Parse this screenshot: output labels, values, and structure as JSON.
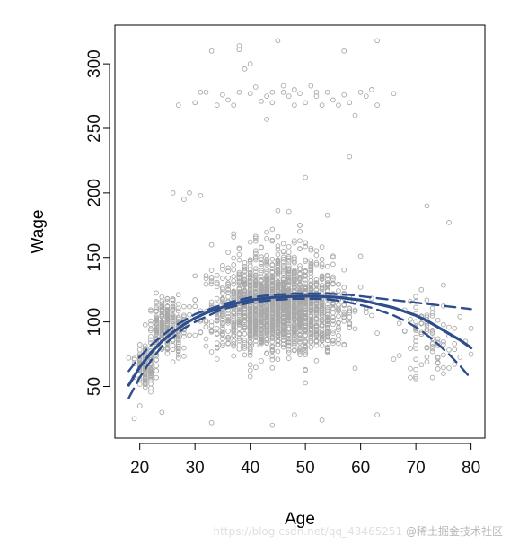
{
  "chart_data": {
    "type": "scatter",
    "title": "",
    "xlabel": "Age",
    "ylabel": "Wage",
    "xlim": [
      15.5,
      82.5
    ],
    "ylim": [
      10,
      330
    ],
    "x_ticks": [
      20,
      30,
      40,
      50,
      60,
      70,
      80
    ],
    "y_ticks": [
      50,
      100,
      150,
      200,
      250,
      300
    ],
    "x_tick_labels": [
      "20",
      "30",
      "40",
      "50",
      "60",
      "70",
      "80"
    ],
    "y_tick_labels": [
      "50",
      "100",
      "150",
      "200",
      "250",
      "300"
    ],
    "grid": false,
    "colors": {
      "points": "#a9a9a9",
      "fit": "#2d4d8c",
      "frame": "#000000"
    },
    "series": [
      {
        "kind": "points",
        "marker": "open-circle",
        "clusters": [
          {
            "x_range": [
              18,
              24
            ],
            "y_range": [
              40,
              90
            ],
            "count": 120
          },
          {
            "x_range": [
              20,
              30
            ],
            "y_range": [
              60,
              130
            ],
            "count": 260
          },
          {
            "x_range": [
              26,
              64
            ],
            "y_range": [
              60,
              160
            ],
            "count": 1300
          },
          {
            "x_range": [
              30,
              62
            ],
            "y_range": [
              40,
              200
            ],
            "count": 600
          },
          {
            "x_range": [
              64,
              80
            ],
            "y_range": [
              40,
              140
            ],
            "count": 90
          }
        ],
        "points": [
          [
            33,
            310
          ],
          [
            38,
            314
          ],
          [
            38,
            311
          ],
          [
            45,
            318
          ],
          [
            57,
            310
          ],
          [
            63,
            318
          ],
          [
            40,
            300
          ],
          [
            39,
            296
          ],
          [
            27,
            268
          ],
          [
            32,
            278
          ],
          [
            34,
            268
          ],
          [
            36,
            272
          ],
          [
            37,
            268
          ],
          [
            38,
            278
          ],
          [
            40,
            277
          ],
          [
            41,
            282
          ],
          [
            42,
            271
          ],
          [
            43,
            275
          ],
          [
            43,
            257
          ],
          [
            44,
            270
          ],
          [
            46,
            278
          ],
          [
            46,
            283
          ],
          [
            47,
            275
          ],
          [
            48,
            268
          ],
          [
            49,
            277
          ],
          [
            50,
            270
          ],
          [
            51,
            283
          ],
          [
            52,
            275
          ],
          [
            53,
            268
          ],
          [
            54,
            278
          ],
          [
            55,
            272
          ],
          [
            56,
            268
          ],
          [
            57,
            276
          ],
          [
            58,
            270
          ],
          [
            59,
            260
          ],
          [
            60,
            278
          ],
          [
            61,
            275
          ],
          [
            62,
            280
          ],
          [
            63,
            268
          ],
          [
            66,
            277
          ],
          [
            31,
            278
          ],
          [
            35,
            276
          ],
          [
            44,
            278
          ],
          [
            52,
            278
          ],
          [
            58,
            228
          ],
          [
            50,
            212
          ],
          [
            30,
            270
          ],
          [
            48,
            280
          ],
          [
            19,
            25
          ],
          [
            20,
            35
          ],
          [
            24,
            30
          ],
          [
            33,
            22
          ],
          [
            44,
            20
          ],
          [
            48,
            28
          ],
          [
            53,
            24
          ],
          [
            63,
            28
          ],
          [
            75,
            60
          ],
          [
            74,
            68
          ],
          [
            76,
            177
          ],
          [
            72,
            190
          ],
          [
            71,
            125
          ],
          [
            77,
            95
          ],
          [
            79,
            85
          ],
          [
            80,
            95
          ],
          [
            80,
            75
          ],
          [
            26,
            200
          ],
          [
            29,
            200
          ],
          [
            28,
            195
          ],
          [
            31,
            198
          ]
        ]
      },
      {
        "kind": "line",
        "name": "",
        "style": "solid",
        "x": [
          18,
          20,
          22,
          24,
          26,
          28,
          30,
          32,
          34,
          36,
          38,
          40,
          42,
          44,
          46,
          48,
          50,
          52,
          54,
          56,
          58,
          60,
          62,
          64,
          66,
          68,
          70,
          72,
          74,
          76,
          78,
          80
        ],
        "values": [
          51,
          65,
          76,
          85,
          92,
          98,
          103,
          107,
          110,
          113,
          115,
          117,
          118,
          119,
          119.5,
          119.8,
          120,
          120,
          119.5,
          119,
          118,
          117,
          115,
          113,
          111,
          108,
          105,
          101,
          96,
          91,
          86,
          80
        ]
      },
      {
        "kind": "line",
        "name": "",
        "style": "dashed",
        "x": [
          18,
          20,
          22,
          24,
          26,
          28,
          30,
          32,
          34,
          36,
          38,
          40,
          42,
          44,
          46,
          48,
          50,
          52,
          54,
          56,
          58,
          60,
          62,
          64,
          66,
          68,
          70,
          72,
          74,
          76,
          78,
          80
        ],
        "values": [
          62,
          73,
          82,
          89,
          96,
          101,
          106,
          109,
          112,
          115,
          117,
          119,
          120,
          121,
          121.5,
          122,
          122,
          122,
          122,
          121.5,
          121,
          120,
          119,
          118,
          117,
          116,
          115,
          114,
          113,
          112,
          111,
          110
        ]
      },
      {
        "kind": "line",
        "name": "",
        "style": "dashed",
        "x": [
          18,
          20,
          22,
          24,
          26,
          28,
          30,
          32,
          34,
          36,
          38,
          40,
          42,
          44,
          46,
          48,
          50,
          52,
          54,
          56,
          58,
          60,
          62,
          64,
          66,
          68,
          70,
          72,
          74,
          76,
          78,
          80
        ],
        "values": [
          41,
          57,
          70,
          81,
          88,
          95,
          100,
          104,
          108,
          111,
          113,
          115,
          116,
          117,
          117.5,
          118,
          118,
          118,
          117.5,
          116.5,
          115,
          113,
          111,
          108,
          105,
          101,
          96,
          90,
          83,
          75,
          66,
          56
        ]
      }
    ]
  },
  "watermark": {
    "text": "@稀土掘金技术社区",
    "url_fragment": "https://blog.csdn.net/qq_43465251"
  }
}
